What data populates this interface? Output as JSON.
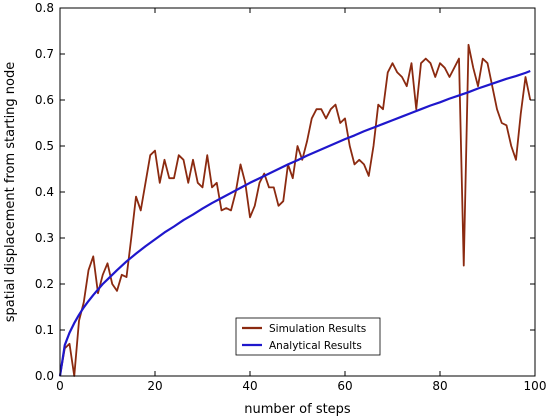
{
  "chart_data": {
    "type": "line",
    "xlabel": "number of steps",
    "ylabel": "spatial displacement from starting node",
    "xlim": [
      0,
      100
    ],
    "ylim": [
      0,
      0.8
    ],
    "xticks": [
      0,
      20,
      40,
      60,
      80,
      100
    ],
    "yticks": [
      0.0,
      0.1,
      0.2,
      0.3,
      0.4,
      0.5,
      0.6,
      0.7,
      0.8
    ],
    "xtick_labels": [
      "0",
      "20",
      "40",
      "60",
      "80",
      "100"
    ],
    "ytick_labels": [
      "0.0",
      "0.1",
      "0.2",
      "0.3",
      "0.4",
      "0.5",
      "0.6",
      "0.7",
      "0.8"
    ],
    "grid": false,
    "legend_position": "lower-center",
    "series": [
      {
        "name": "Simulation Results",
        "color": "#8b2a10",
        "x": [
          0,
          1,
          2,
          3,
          4,
          5,
          6,
          7,
          8,
          9,
          10,
          11,
          12,
          13,
          14,
          15,
          16,
          17,
          18,
          19,
          20,
          21,
          22,
          23,
          24,
          25,
          26,
          27,
          28,
          29,
          30,
          31,
          32,
          33,
          34,
          35,
          36,
          37,
          38,
          39,
          40,
          41,
          42,
          43,
          44,
          45,
          46,
          47,
          48,
          49,
          50,
          51,
          52,
          53,
          54,
          55,
          56,
          57,
          58,
          59,
          60,
          61,
          62,
          63,
          64,
          65,
          66,
          67,
          68,
          69,
          70,
          71,
          72,
          73,
          74,
          75,
          76,
          77,
          78,
          79,
          80,
          81,
          82,
          83,
          84,
          85,
          86,
          87,
          88,
          89,
          90,
          91,
          92,
          93,
          94,
          95,
          96,
          97,
          98,
          99
        ],
        "values": [
          0.0,
          0.06,
          0.07,
          0.0,
          0.12,
          0.16,
          0.23,
          0.26,
          0.18,
          0.22,
          0.245,
          0.2,
          0.185,
          0.22,
          0.215,
          0.3,
          0.39,
          0.36,
          0.42,
          0.48,
          0.49,
          0.42,
          0.47,
          0.43,
          0.43,
          0.48,
          0.47,
          0.42,
          0.47,
          0.42,
          0.41,
          0.48,
          0.41,
          0.42,
          0.36,
          0.365,
          0.36,
          0.4,
          0.46,
          0.42,
          0.345,
          0.37,
          0.42,
          0.44,
          0.41,
          0.41,
          0.37,
          0.38,
          0.46,
          0.43,
          0.5,
          0.47,
          0.51,
          0.56,
          0.58,
          0.58,
          0.56,
          0.58,
          0.59,
          0.55,
          0.56,
          0.5,
          0.46,
          0.47,
          0.46,
          0.435,
          0.5,
          0.59,
          0.58,
          0.66,
          0.68,
          0.66,
          0.65,
          0.63,
          0.68,
          0.58,
          0.68,
          0.69,
          0.68,
          0.65,
          0.68,
          0.67,
          0.65,
          0.67,
          0.69,
          0.24,
          0.72,
          0.67,
          0.63,
          0.69,
          0.68,
          0.63,
          0.58,
          0.55,
          0.545,
          0.5,
          0.47,
          0.57,
          0.65,
          0.6
        ]
      },
      {
        "name": "Analytical Results",
        "color": "#1f17cc",
        "x": [
          0,
          1,
          2,
          3,
          4,
          5,
          6,
          7,
          8,
          9,
          10,
          12,
          14,
          16,
          18,
          20,
          22,
          24,
          26,
          28,
          30,
          32,
          34,
          36,
          38,
          40,
          42,
          44,
          46,
          48,
          50,
          52,
          54,
          56,
          58,
          60,
          62,
          64,
          66,
          68,
          70,
          72,
          74,
          76,
          78,
          80,
          82,
          84,
          86,
          88,
          90,
          92,
          94,
          96,
          98,
          99
        ],
        "values": [
          0.0,
          0.067,
          0.094,
          0.115,
          0.133,
          0.149,
          0.163,
          0.176,
          0.188,
          0.2,
          0.21,
          0.23,
          0.249,
          0.266,
          0.282,
          0.297,
          0.312,
          0.325,
          0.339,
          0.351,
          0.364,
          0.376,
          0.387,
          0.398,
          0.409,
          0.42,
          0.43,
          0.44,
          0.45,
          0.46,
          0.469,
          0.479,
          0.488,
          0.497,
          0.506,
          0.515,
          0.523,
          0.532,
          0.54,
          0.548,
          0.556,
          0.564,
          0.572,
          0.58,
          0.588,
          0.595,
          0.603,
          0.61,
          0.617,
          0.625,
          0.632,
          0.639,
          0.646,
          0.652,
          0.659,
          0.663
        ]
      }
    ]
  }
}
